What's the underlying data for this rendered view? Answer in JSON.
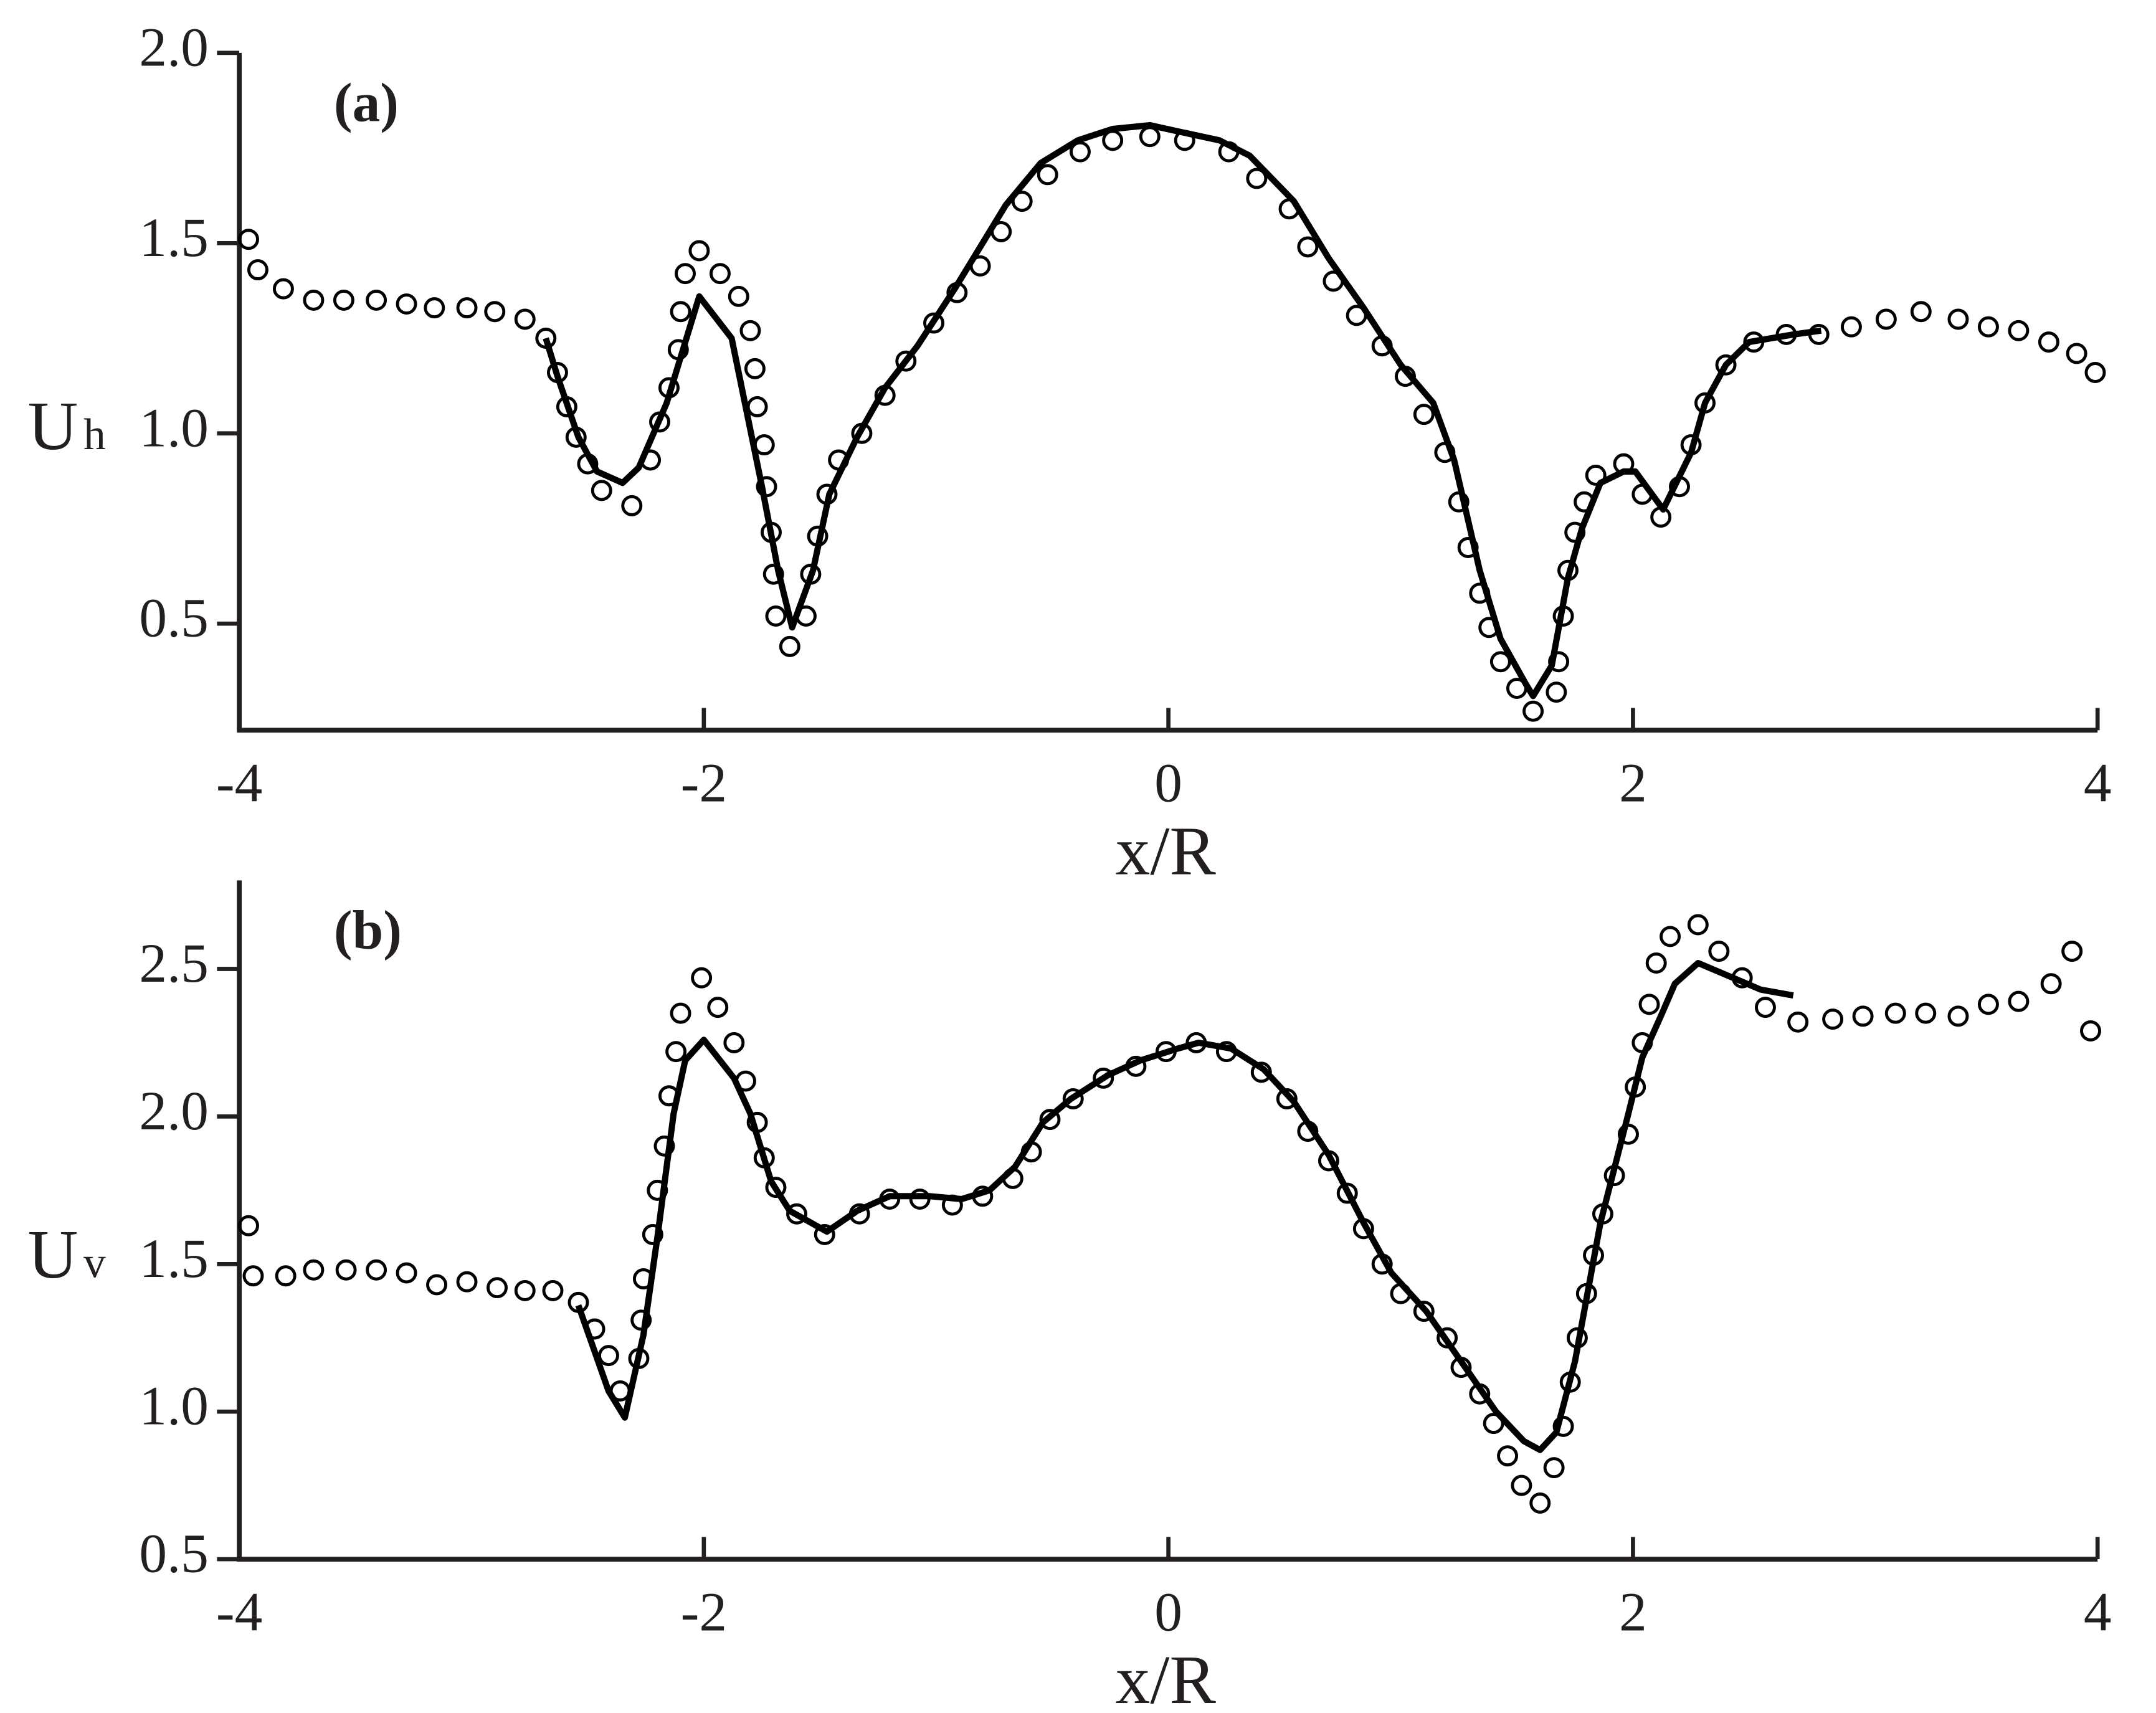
{
  "chart_data": [
    {
      "type": "line",
      "title": "(a)",
      "xlabel": "x/R",
      "ylabel": {
        "main": "U",
        "sub": "h"
      },
      "xlim": [
        -4,
        4
      ],
      "xticks": [
        -4,
        -2,
        0,
        2,
        4
      ],
      "ylim": [
        0.22,
        2.0
      ],
      "yticks": [
        0.5,
        {
          "value": 1.0,
          "label": "1.0"
        },
        1.5,
        {
          "value": 2.0,
          "label": "2.0"
        }
      ],
      "series": [
        {
          "kind": "scatter",
          "color": "#000000",
          "x": [
            -3.96,
            -3.92,
            -3.81,
            -3.68,
            -3.55,
            -3.41,
            -3.28,
            -3.16,
            -3.02,
            -2.9,
            -2.77,
            -2.68,
            -2.63,
            -2.59,
            -2.55,
            -2.5,
            -2.44,
            -2.31,
            -2.23,
            -2.19,
            -2.15,
            -2.11,
            -2.1,
            -2.08,
            -2.02,
            -1.93,
            -1.85,
            -1.8,
            -1.78,
            -1.77,
            -1.74,
            -1.73,
            -1.71,
            -1.7,
            -1.69,
            -1.63,
            -1.56,
            -1.54,
            -1.51,
            -1.47,
            -1.42,
            -1.32,
            -1.22,
            -1.13,
            -1.01,
            -0.91,
            -0.81,
            -0.72,
            -0.63,
            -0.52,
            -0.38,
            -0.24,
            -0.08,
            0.07,
            0.26,
            0.38,
            0.52,
            0.6,
            0.71,
            0.81,
            0.92,
            1.02,
            1.1,
            1.19,
            1.25,
            1.29,
            1.34,
            1.38,
            1.43,
            1.5,
            1.57,
            1.67,
            1.68,
            1.7,
            1.72,
            1.75,
            1.79,
            1.84,
            1.96,
            2.04,
            2.12,
            2.2,
            2.25,
            2.31,
            2.4,
            2.52,
            2.66,
            2.8,
            2.94,
            3.09,
            3.24,
            3.4,
            3.53,
            3.66,
            3.79,
            3.91,
            3.99
          ],
          "values": [
            1.51,
            1.43,
            1.38,
            1.35,
            1.35,
            1.35,
            1.34,
            1.33,
            1.33,
            1.32,
            1.3,
            1.25,
            1.16,
            1.07,
            0.99,
            0.92,
            0.85,
            0.81,
            0.93,
            1.03,
            1.12,
            1.22,
            1.32,
            1.42,
            1.48,
            1.42,
            1.36,
            1.27,
            1.17,
            1.07,
            0.97,
            0.86,
            0.74,
            0.63,
            0.52,
            0.44,
            0.52,
            0.63,
            0.73,
            0.84,
            0.93,
            1.0,
            1.1,
            1.19,
            1.29,
            1.37,
            1.44,
            1.53,
            1.61,
            1.68,
            1.74,
            1.77,
            1.78,
            1.77,
            1.74,
            1.67,
            1.59,
            1.49,
            1.4,
            1.31,
            1.23,
            1.15,
            1.05,
            0.95,
            0.82,
            0.7,
            0.58,
            0.49,
            0.4,
            0.33,
            0.27,
            0.32,
            0.4,
            0.52,
            0.64,
            0.74,
            0.82,
            0.89,
            0.92,
            0.84,
            0.78,
            0.86,
            0.97,
            1.08,
            1.18,
            1.24,
            1.26,
            1.26,
            1.28,
            1.3,
            1.32,
            1.3,
            1.28,
            1.27,
            1.24,
            1.21,
            1.16
          ]
        },
        {
          "kind": "line",
          "color": "#000000",
          "x": [
            -2.68,
            -2.63,
            -2.54,
            -2.46,
            -2.35,
            -2.28,
            -2.16,
            -2.02,
            -1.88,
            -1.75,
            -1.68,
            -1.62,
            -1.53,
            -1.46,
            -1.34,
            -1.22,
            -1.08,
            -0.92,
            -0.83,
            -0.7,
            -0.55,
            -0.39,
            -0.24,
            -0.08,
            0.07,
            0.22,
            0.35,
            0.54,
            0.69,
            0.84,
            1.0,
            1.14,
            1.23,
            1.34,
            1.43,
            1.54,
            1.57,
            1.65,
            1.72,
            1.78,
            1.86,
            1.96,
            2.01,
            2.13,
            2.25,
            2.31,
            2.4,
            2.5,
            2.69,
            2.81
          ],
          "values": [
            1.25,
            1.15,
            0.99,
            0.9,
            0.87,
            0.91,
            1.08,
            1.36,
            1.25,
            0.86,
            0.64,
            0.49,
            0.64,
            0.84,
            0.99,
            1.12,
            1.23,
            1.38,
            1.47,
            1.6,
            1.71,
            1.77,
            1.8,
            1.81,
            1.79,
            1.77,
            1.73,
            1.61,
            1.46,
            1.33,
            1.18,
            1.08,
            0.93,
            0.64,
            0.46,
            0.34,
            0.31,
            0.39,
            0.62,
            0.75,
            0.87,
            0.9,
            0.9,
            0.8,
            0.95,
            1.08,
            1.18,
            1.24,
            1.26,
            1.27
          ]
        }
      ]
    },
    {
      "type": "line",
      "title": "(b)",
      "xlabel": "x/R",
      "ylabel": {
        "main": "U",
        "sub": "v"
      },
      "xlim": [
        -4,
        4
      ],
      "xticks": [
        -4,
        -2,
        0,
        2,
        4
      ],
      "ylim": [
        0.5,
        2.8
      ],
      "yticks": [
        0.5,
        {
          "value": 1.0,
          "label": "1.0"
        },
        1.5,
        {
          "value": 2.0,
          "label": "2.0"
        },
        2.5
      ],
      "series": [
        {
          "kind": "scatter",
          "color": "#000000",
          "x": [
            -3.96,
            -3.94,
            -3.8,
            -3.68,
            -3.54,
            -3.41,
            -3.28,
            -3.15,
            -3.02,
            -2.89,
            -2.77,
            -2.65,
            -2.54,
            -2.47,
            -2.41,
            -2.36,
            -2.28,
            -2.27,
            -2.26,
            -2.22,
            -2.2,
            -2.17,
            -2.15,
            -2.12,
            -2.1,
            -2.01,
            -1.94,
            -1.87,
            -1.82,
            -1.77,
            -1.74,
            -1.69,
            -1.6,
            -1.48,
            -1.33,
            -1.2,
            -1.07,
            -0.93,
            -0.8,
            -0.67,
            -0.59,
            -0.51,
            -0.41,
            -0.28,
            -0.14,
            -0.01,
            0.12,
            0.25,
            0.4,
            0.51,
            0.6,
            0.69,
            0.77,
            0.84,
            0.92,
            1.0,
            1.1,
            1.2,
            1.26,
            1.34,
            1.4,
            1.46,
            1.52,
            1.6,
            1.66,
            1.7,
            1.73,
            1.76,
            1.8,
            1.83,
            1.87,
            1.92,
            1.98,
            2.01,
            2.04,
            2.07,
            2.1,
            2.16,
            2.28,
            2.37,
            2.47,
            2.57,
            2.71,
            2.86,
            2.99,
            3.13,
            3.26,
            3.4,
            3.53,
            3.66,
            3.8,
            3.89,
            3.97
          ],
          "values": [
            1.63,
            1.46,
            1.46,
            1.48,
            1.48,
            1.48,
            1.47,
            1.43,
            1.44,
            1.42,
            1.41,
            1.41,
            1.37,
            1.28,
            1.19,
            1.07,
            1.18,
            1.31,
            1.45,
            1.6,
            1.75,
            1.9,
            2.07,
            2.22,
            2.35,
            2.47,
            2.37,
            2.25,
            2.12,
            1.98,
            1.86,
            1.76,
            1.67,
            1.6,
            1.67,
            1.72,
            1.72,
            1.7,
            1.73,
            1.79,
            1.88,
            1.99,
            2.06,
            2.13,
            2.17,
            2.22,
            2.25,
            2.22,
            2.15,
            2.06,
            1.95,
            1.85,
            1.74,
            1.62,
            1.5,
            1.4,
            1.34,
            1.25,
            1.15,
            1.06,
            0.96,
            0.85,
            0.75,
            0.69,
            0.81,
            0.95,
            1.1,
            1.25,
            1.4,
            1.53,
            1.67,
            1.8,
            1.94,
            2.1,
            2.25,
            2.38,
            2.52,
            2.61,
            2.65,
            2.56,
            2.47,
            2.37,
            2.32,
            2.33,
            2.34,
            2.35,
            2.35,
            2.34,
            2.38,
            2.39,
            2.45,
            2.56,
            2.29
          ]
        },
        {
          "kind": "line",
          "color": "#000000",
          "x": [
            -2.54,
            -2.41,
            -2.34,
            -2.26,
            -2.2,
            -2.13,
            -2.08,
            -2.0,
            -1.87,
            -1.8,
            -1.71,
            -1.63,
            -1.47,
            -1.34,
            -1.2,
            -1.03,
            -0.89,
            -0.77,
            -0.66,
            -0.54,
            -0.42,
            -0.26,
            -0.12,
            0.04,
            0.13,
            0.27,
            0.41,
            0.54,
            0.69,
            0.84,
            0.96,
            1.11,
            1.26,
            1.41,
            1.53,
            1.6,
            1.67,
            1.75,
            1.86,
            1.98,
            2.04,
            2.12,
            2.18,
            2.28,
            2.46,
            2.55,
            2.69
          ],
          "values": [
            1.36,
            1.07,
            0.98,
            1.26,
            1.59,
            2.01,
            2.19,
            2.26,
            2.13,
            2.01,
            1.78,
            1.68,
            1.61,
            1.68,
            1.73,
            1.73,
            1.72,
            1.75,
            1.83,
            1.98,
            2.06,
            2.14,
            2.19,
            2.23,
            2.25,
            2.23,
            2.16,
            2.05,
            1.87,
            1.64,
            1.47,
            1.34,
            1.17,
            1.0,
            0.9,
            0.87,
            0.93,
            1.17,
            1.64,
            2.01,
            2.2,
            2.34,
            2.45,
            2.52,
            2.46,
            2.43,
            2.41
          ]
        }
      ]
    }
  ]
}
